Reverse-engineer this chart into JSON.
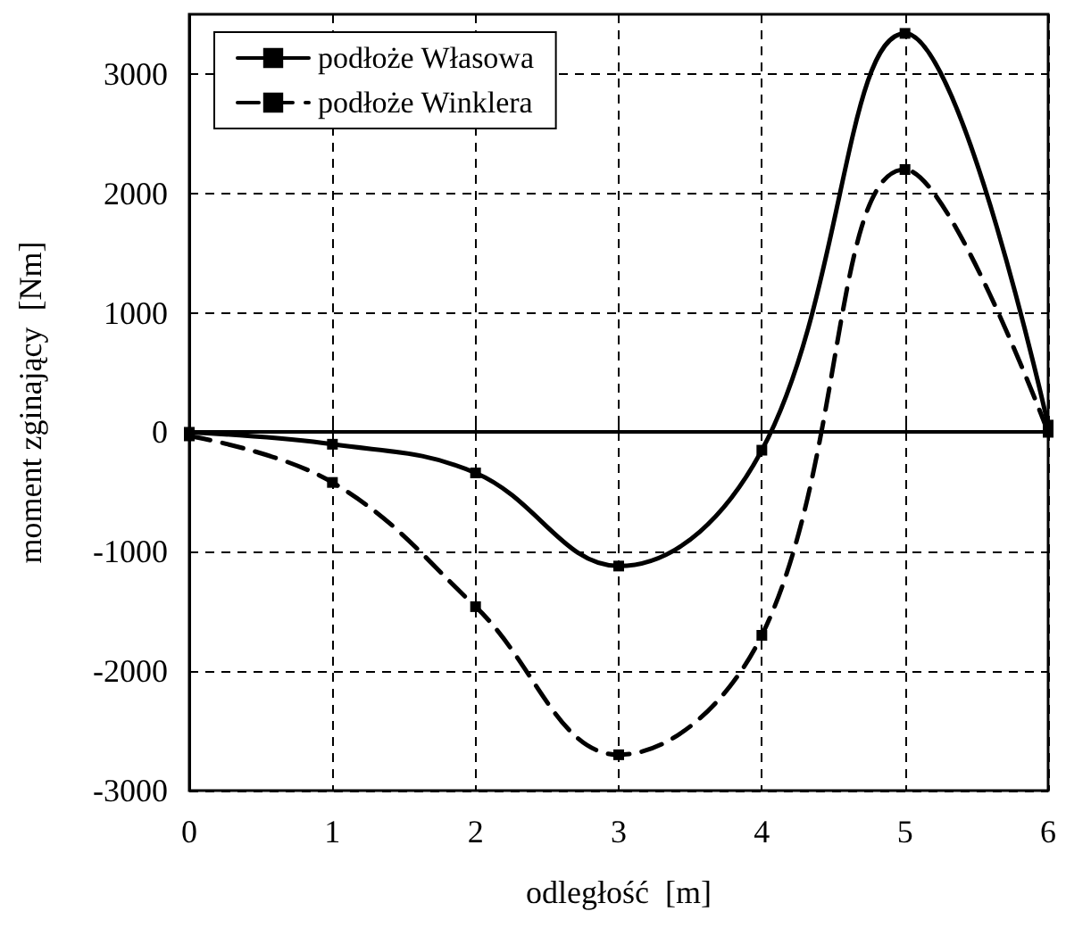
{
  "chart_data": {
    "type": "line",
    "xlabel": "odległość  [m]",
    "ylabel": "moment zginający  [Nm]",
    "x": [
      0,
      1,
      2,
      3,
      4,
      5,
      6
    ],
    "series": [
      {
        "name": "podłoże Własowa",
        "color": "#000000",
        "line_style": "solid",
        "values": [
          0,
          -100,
          -340,
          -1120,
          -150,
          3340,
          60
        ]
      },
      {
        "name": "podłoże Winklera",
        "color": "#000000",
        "line_style": "dashed",
        "values": [
          -30,
          -420,
          -1460,
          -2700,
          -1700,
          2200,
          0
        ]
      }
    ],
    "xlim": [
      0,
      6
    ],
    "xticks": [
      0,
      1,
      2,
      3,
      4,
      5,
      6
    ],
    "ylim": [
      -3000,
      3500
    ],
    "yticks": [
      -3000,
      -2000,
      -1000,
      0,
      1000,
      2000,
      3000
    ],
    "grid": true,
    "legend": "top left",
    "marker": "square",
    "ref_lines": [
      {
        "axis": "y",
        "value": 0,
        "color": "#000000",
        "line_style": "solid"
      }
    ]
  }
}
